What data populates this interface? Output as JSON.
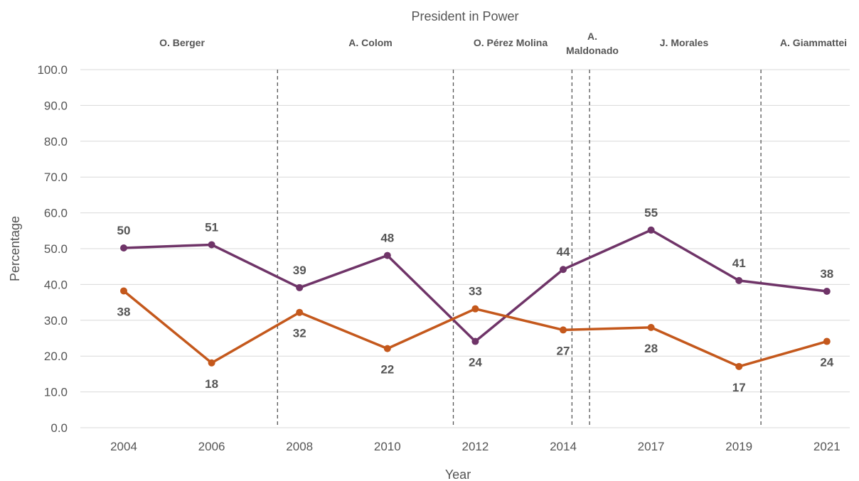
{
  "chart_data": {
    "type": "line",
    "title": "President in Power",
    "xlabel": "Year",
    "ylabel": "Percentage",
    "ylim": [
      0,
      100
    ],
    "yticks": [
      "0.0",
      "10.0",
      "20.0",
      "30.0",
      "40.0",
      "50.0",
      "60.0",
      "70.0",
      "80.0",
      "90.0",
      "100.0"
    ],
    "categories": [
      "2004",
      "2006",
      "2008",
      "2010",
      "2012",
      "2014",
      "2017",
      "2019",
      "2021"
    ],
    "series": [
      {
        "color": "#6f3468",
        "values": [
          50.2,
          51.1,
          39.1,
          48.1,
          24.1,
          44.2,
          55.2,
          41.1,
          38.1
        ],
        "labels": [
          "50",
          "51",
          "39",
          "48",
          "24",
          "44",
          "55",
          "41",
          "38"
        ],
        "label_position": [
          "above",
          "above",
          "above",
          "above",
          "below",
          "above",
          "above",
          "above",
          "above"
        ]
      },
      {
        "color": "#c4581c",
        "values": [
          38.2,
          18.1,
          32.2,
          22.1,
          33.2,
          27.3,
          28.0,
          17.1,
          24.1
        ],
        "labels": [
          "38",
          "18",
          "32",
          "22",
          "33",
          "27",
          "28",
          "17",
          "24"
        ],
        "label_position": [
          "below",
          "below",
          "below",
          "below",
          "above",
          "below",
          "below",
          "below",
          "below"
        ]
      }
    ],
    "grid": true,
    "legend": "none",
    "periods": [
      {
        "name": "O. Berger"
      },
      {
        "name": "A. Colom"
      },
      {
        "name": "O. Pérez Molina"
      },
      {
        "name_lines": [
          "A.",
          "Maldonado"
        ]
      },
      {
        "name": "J. Morales"
      },
      {
        "name": "A. Giammattei"
      }
    ],
    "divider_years": [
      2007.5,
      2011.5,
      2014.3,
      2014.9,
      2019.5
    ]
  }
}
